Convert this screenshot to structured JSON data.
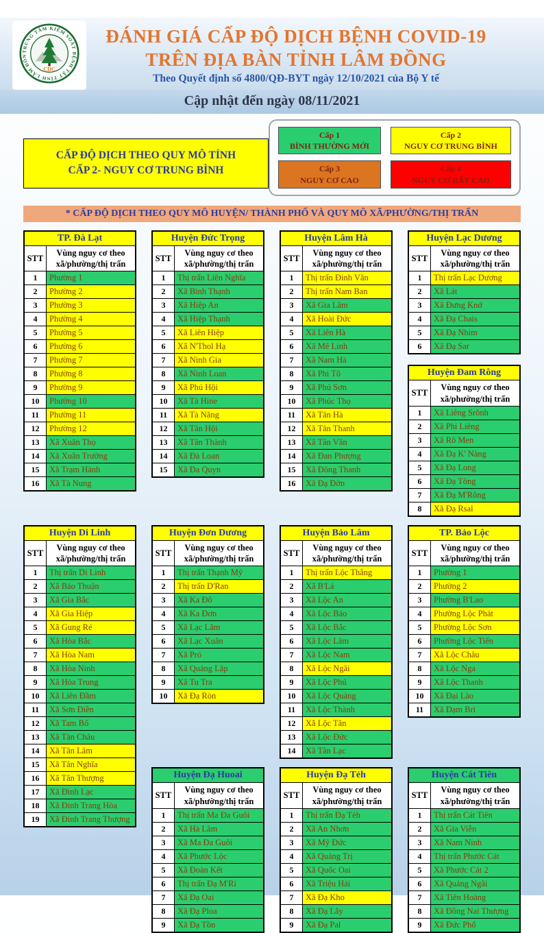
{
  "page": {
    "header": {
      "title_line1": "ĐÁNH GIÁ CẤP ĐỘ DỊCH BỆNH COVID-19",
      "title_line2": "TRÊN ĐỊA BÀN TỈNH LÂM ĐỒNG",
      "subtitle": "Theo Quyết định số 4800/QĐ-BYT ngày 12/10/2021 của Bộ Y tế",
      "updated": "Cập nhật đến ngày 08/11/2021",
      "logo": {
        "ring_text": "TRUNG TÂM KIỂM SOÁT BỆNH TẬT TỈNH LÂM ĐỒNG",
        "center_text": "CDC"
      }
    },
    "province_box": {
      "line1": "CẤP ĐỘ DỊCH THEO QUY MÔ TỈNH",
      "line2": "CẤP 2- NGUY CƠ TRUNG BÌNH"
    },
    "section_banner": "* CẤP ĐỘ DỊCH THEO QUY MÔ HUYỆN/ THÀNH PHỐ VÀ QUY MÔ XÃ/PHƯỜNG/THỊ TRẤN"
  },
  "legend": {
    "items": [
      {
        "level": "Cấp 1",
        "label": "BÌNH THƯỜNG MỚI",
        "color": "#2bce6e"
      },
      {
        "level": "Cấp 2",
        "label": "NGUY CƠ TRUNG BÌNH",
        "color": "#ffff00"
      },
      {
        "level": "Cấp 3",
        "label": "NGUY CƠ CAO",
        "color": "#dc7521"
      },
      {
        "level": "Cấp 4",
        "label": "NGUY CƠ RẤT CAO",
        "color": "#ff0000"
      }
    ]
  },
  "table_headers": {
    "stt": "STT",
    "zone": "Vùng nguy cơ theo xã/phường/thị trấn"
  },
  "colors": {
    "level1_green": "#2bce6e",
    "level2_yellow": "#ffff00",
    "district_name_blue": "#2c3c9c",
    "commune_text": "#843c0c"
  },
  "districts": [
    {
      "name": "TP. Đà Lạt",
      "header_level": 2,
      "rows": [
        [
          1,
          "Phường 1",
          1
        ],
        [
          2,
          "Phường 2",
          2
        ],
        [
          3,
          "Phường 3",
          2
        ],
        [
          4,
          "Phường 4",
          2
        ],
        [
          5,
          "Phường 5",
          2
        ],
        [
          6,
          "Phường 6",
          2
        ],
        [
          7,
          "Phường 7",
          2
        ],
        [
          8,
          "Phường 8",
          2
        ],
        [
          9,
          "Phường 9",
          2
        ],
        [
          10,
          "Phường 10",
          1
        ],
        [
          11,
          "Phường 11",
          2
        ],
        [
          12,
          "Phường 12",
          2
        ],
        [
          13,
          "Xã Xuân Thọ",
          1
        ],
        [
          14,
          "Xã Xuân Trường",
          1
        ],
        [
          15,
          "Xã Trạm Hành",
          1
        ],
        [
          16,
          "Xã Tà Nung",
          1
        ]
      ]
    },
    {
      "name": "Huyện Đức Trọng",
      "header_level": 2,
      "rows": [
        [
          1,
          "Thị trấn Liên Nghĩa",
          1
        ],
        [
          2,
          "Xã Bình Thạnh",
          1
        ],
        [
          3,
          "Xã Hiệp An",
          1
        ],
        [
          4,
          "Xã Hiệp Thạnh",
          1
        ],
        [
          5,
          "Xã Liên Hiệp",
          2
        ],
        [
          6,
          "Xã N'Thol Hạ",
          2
        ],
        [
          7,
          "Xã Ninh Gia",
          2
        ],
        [
          8,
          "Xã Ninh Loan",
          1
        ],
        [
          9,
          "Xã Phú Hội",
          2
        ],
        [
          10,
          "Xã Tà Hine",
          1
        ],
        [
          11,
          "Xã Tà Năng",
          2
        ],
        [
          12,
          "Xã Tân Hội",
          1
        ],
        [
          13,
          "Xã Tân Thành",
          1
        ],
        [
          14,
          "Xã Đà Loan",
          1
        ],
        [
          15,
          "Xã Đa Quyn",
          1
        ]
      ]
    },
    {
      "name": "Huyện Lâm Hà",
      "header_level": 2,
      "rows": [
        [
          1,
          "Thị trấn Đinh Văn",
          2
        ],
        [
          2,
          "Thị trấn Nam Ban",
          2
        ],
        [
          3,
          "Xã Gia Lâm",
          1
        ],
        [
          4,
          "Xã Hoài Đức",
          2
        ],
        [
          5,
          "Xã Liên Hà",
          1
        ],
        [
          6,
          "Xã Mê Linh",
          1
        ],
        [
          7,
          "Xã Nam Hà",
          1
        ],
        [
          8,
          "Xã Phi Tô",
          1
        ],
        [
          9,
          "Xã Phú Sơn",
          1
        ],
        [
          10,
          "Xã Phúc Thọ",
          1
        ],
        [
          11,
          "Xã Tân Hà",
          2
        ],
        [
          12,
          "Xã Tân Thanh",
          2
        ],
        [
          13,
          "Xã Tân Văn",
          1
        ],
        [
          14,
          "Xã Đan Phượng",
          1
        ],
        [
          15,
          "Xã Đông Thanh",
          1
        ],
        [
          16,
          "Xã Đạ Đờn",
          1
        ]
      ]
    },
    {
      "name": "Huyện Lạc Dương",
      "header_level": 2,
      "rows": [
        [
          1,
          "Thị trấn Lạc Dương",
          2
        ],
        [
          2,
          "Xã Lát",
          1
        ],
        [
          3,
          "Xã Đưng Knớ",
          1
        ],
        [
          4,
          "Xã Đạ Chais",
          1
        ],
        [
          5,
          "Xã Đạ Nhim",
          1
        ],
        [
          6,
          "Xã Đạ Sar",
          1
        ]
      ]
    },
    {
      "name": "Huyện Đam Rông",
      "header_level": 2,
      "rows": [
        [
          1,
          "Xã Liêng Srônh",
          1
        ],
        [
          2,
          "Xã Phi Liêng",
          1
        ],
        [
          3,
          "Xã Rô Men",
          1
        ],
        [
          4,
          "Xã Đạ K' Nàng",
          1
        ],
        [
          5,
          "Xã Đạ Long",
          1
        ],
        [
          6,
          "Xã Đạ Tông",
          1
        ],
        [
          7,
          "Xã Đạ M'Rông",
          1
        ],
        [
          8,
          "Xã Đạ Rsal",
          2
        ]
      ]
    },
    {
      "name": "Huyện Di Linh",
      "header_level": 2,
      "rows": [
        [
          1,
          "Thị trấn Di Linh",
          1
        ],
        [
          2,
          "Xã Bảo Thuận",
          1
        ],
        [
          3,
          "Xã Gia Bắc",
          1
        ],
        [
          4,
          "Xã Gia Hiệp",
          2
        ],
        [
          5,
          "Xã Gung Ré",
          2
        ],
        [
          6,
          "Xã Hòa Bắc",
          1
        ],
        [
          7,
          "Xã Hòa Nam",
          2
        ],
        [
          8,
          "Xã Hòa Ninh",
          1
        ],
        [
          9,
          "Xã Hòa Trung",
          1
        ],
        [
          10,
          "Xã Liên Đầm",
          1
        ],
        [
          11,
          "Xã Sơn Điền",
          1
        ],
        [
          12,
          "Xã Tam Bố",
          1
        ],
        [
          13,
          "Xã Tân Châu",
          1
        ],
        [
          14,
          "Xã Tân Lâm",
          2
        ],
        [
          15,
          "Xã Tân Nghĩa",
          2
        ],
        [
          16,
          "Xã Tân Thượng",
          2
        ],
        [
          17,
          "Xã Đinh Lạc",
          1
        ],
        [
          18,
          "Xã Đinh Trang Hòa",
          1
        ],
        [
          19,
          "Xã Đinh Trang Thượng",
          1
        ]
      ]
    },
    {
      "name": "Huyện Đơn Dương",
      "header_level": 2,
      "rows": [
        [
          1,
          "Thị trấn Thạnh Mỹ",
          1
        ],
        [
          2,
          "Thị trấn D'Ran",
          2
        ],
        [
          3,
          "Xã Ka Đô",
          1
        ],
        [
          4,
          "Xã Ka Đơn",
          1
        ],
        [
          5,
          "Xã Lạc Lâm",
          1
        ],
        [
          6,
          "Xã Lạc Xuân",
          1
        ],
        [
          7,
          "Xã Pró",
          1
        ],
        [
          8,
          "Xã Quảng Lập",
          1
        ],
        [
          9,
          "Xã Tu Tra",
          1
        ],
        [
          10,
          "Xã Đạ Ròn",
          2
        ]
      ]
    },
    {
      "name": "Huyện Bảo Lâm",
      "header_level": 2,
      "rows": [
        [
          1,
          "Thị trấn Lộc Thắng",
          2
        ],
        [
          2,
          "Xã B'Lá",
          1
        ],
        [
          3,
          "Xã Lộc An",
          1
        ],
        [
          4,
          "Xã Lộc Bảo",
          1
        ],
        [
          5,
          "Xã Lộc Bắc",
          1
        ],
        [
          6,
          "Xã Lộc Lâm",
          1
        ],
        [
          7,
          "Xã Lộc Nam",
          1
        ],
        [
          8,
          "Xã Lộc Ngãi",
          2
        ],
        [
          9,
          "Xã Lộc Phú",
          1
        ],
        [
          10,
          "Xã Lộc Quảng",
          1
        ],
        [
          11,
          "Xã Lộc Thành",
          1
        ],
        [
          12,
          "Xã Lộc Tân",
          2
        ],
        [
          13,
          "Xã Lộc Đức",
          1
        ],
        [
          14,
          "Xã Tân Lạc",
          1
        ]
      ]
    },
    {
      "name": "TP. Bảo Lộc",
      "header_level": 2,
      "rows": [
        [
          1,
          "Phường 1",
          1
        ],
        [
          2,
          "Phường 2",
          2
        ],
        [
          3,
          "Phường B'Lao",
          1
        ],
        [
          4,
          "Phường Lộc Phát",
          2
        ],
        [
          5,
          "Phường Lộc Sơn",
          2
        ],
        [
          6,
          "Phường Lộc Tiến",
          1
        ],
        [
          7,
          "Xã Lộc Châu",
          2
        ],
        [
          8,
          "Xã Lộc Nga",
          1
        ],
        [
          9,
          "Xã Lộc Thanh",
          1
        ],
        [
          10,
          "Xã Đại Lào",
          1
        ],
        [
          11,
          "Xã Đạm Bri",
          1
        ]
      ]
    },
    {
      "name": "Huyện Đạ Huoai",
      "header_level": 1,
      "rows": [
        [
          1,
          "Thị trấn Ma Đa Guôi",
          1
        ],
        [
          2,
          "Xã Hà Lâm",
          1
        ],
        [
          3,
          "Xã Ma Đa Guôi",
          1
        ],
        [
          4,
          "Xã Phước Lộc",
          1
        ],
        [
          5,
          "Xã Đoàn Kết",
          1
        ],
        [
          6,
          "Thị trấn Đạ M'Ri",
          1
        ],
        [
          7,
          "Xã Đạ Oai",
          1
        ],
        [
          8,
          "Xã Đạ Ploa",
          1
        ],
        [
          9,
          "Xã Đạ Tồn",
          1
        ]
      ]
    },
    {
      "name": "Huyện Đạ Tẻh",
      "header_level": 2,
      "rows": [
        [
          1,
          "Thị trấn Đạ Tẻh",
          1
        ],
        [
          2,
          "Xã An Nhơn",
          1
        ],
        [
          3,
          "Xã Mỹ Đức",
          1
        ],
        [
          4,
          "Xã Quảng Trị",
          1
        ],
        [
          5,
          "Xã Quốc Oai",
          1
        ],
        [
          6,
          "Xã Triệu Hải",
          1
        ],
        [
          7,
          "Xã Đạ Kho",
          2
        ],
        [
          8,
          "Xã Đạ Lây",
          1
        ],
        [
          9,
          "Xã Đạ Pal",
          1
        ]
      ]
    },
    {
      "name": "Huyện Cát Tiên",
      "header_level": 1,
      "rows": [
        [
          1,
          "Thị trấn Cát Tiên",
          1
        ],
        [
          2,
          "Xã Gia Viễn",
          1
        ],
        [
          3,
          "Xã Nam Ninh",
          1
        ],
        [
          4,
          "Thị trấn Phước Cát",
          1
        ],
        [
          5,
          "Xã Phước Cát 2",
          1
        ],
        [
          6,
          "Xã Quảng Ngãi",
          1
        ],
        [
          7,
          "Xã Tiên Hoàng",
          1
        ],
        [
          8,
          "Xã Đồng Nai Thượng",
          1
        ],
        [
          9,
          "Xã Đức Phổ",
          1
        ]
      ]
    }
  ]
}
